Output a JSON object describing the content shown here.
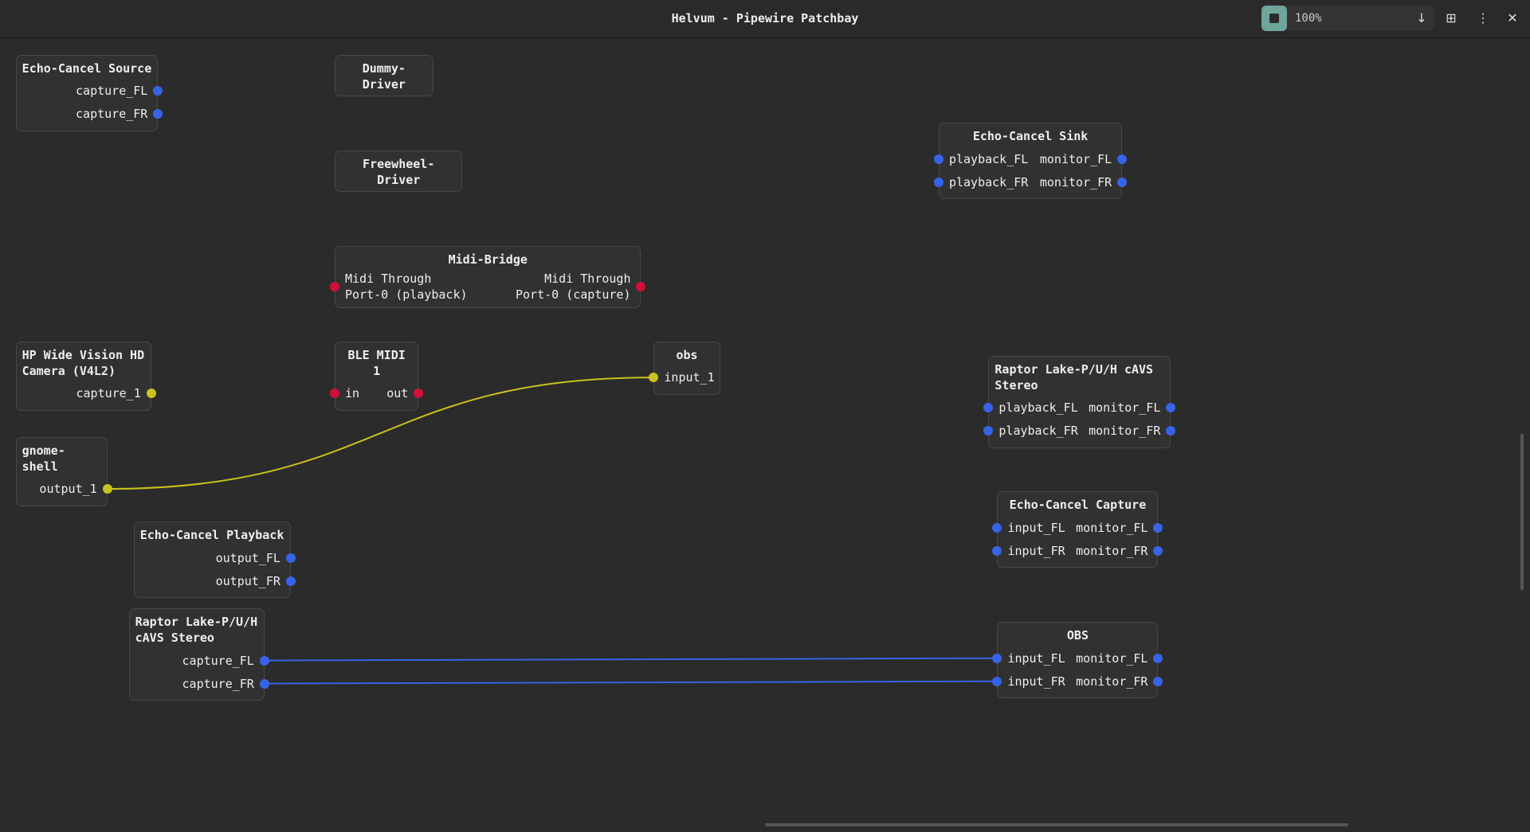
{
  "header": {
    "title": "Helvum - Pipewire Patchbay",
    "zoom": "100%"
  },
  "nodes": [
    {
      "title": "Echo-Cancel Source",
      "inputs": [],
      "outputs": [
        "capture_FL",
        "capture_FR"
      ]
    },
    {
      "title": "Dummy-Driver",
      "inputs": [],
      "outputs": []
    },
    {
      "title": "Freewheel-Driver",
      "inputs": [],
      "outputs": []
    },
    {
      "title": "Echo-Cancel Sink",
      "inputs": [
        "playback_FL",
        "playback_FR"
      ],
      "outputs": [
        "monitor_FL",
        "monitor_FR"
      ]
    },
    {
      "title": "Midi-Bridge",
      "inputs": [
        "Midi Through\nPort-0 (playback)"
      ],
      "outputs": [
        "Midi Through\nPort-0 (capture)"
      ]
    },
    {
      "title": "HP Wide Vision HD Camera (V4L2)",
      "inputs": [],
      "outputs": [
        "capture_1"
      ]
    },
    {
      "title": "BLE MIDI 1",
      "inputs": [
        "in"
      ],
      "outputs": [
        "out"
      ]
    },
    {
      "title": "obs",
      "inputs": [
        "input_1"
      ],
      "outputs": []
    },
    {
      "title": "Raptor Lake-P/U/H cAVS Stereo",
      "inputs": [
        "playback_FL",
        "playback_FR"
      ],
      "outputs": [
        "monitor_FL",
        "monitor_FR"
      ]
    },
    {
      "title": "gnome-shell",
      "inputs": [],
      "outputs": [
        "output_1"
      ]
    },
    {
      "title": "Echo-Cancel Capture",
      "inputs": [
        "input_FL",
        "input_FR"
      ],
      "outputs": [
        "monitor_FL",
        "monitor_FR"
      ]
    },
    {
      "title": "Echo-Cancel Playback",
      "inputs": [],
      "outputs": [
        "output_FL",
        "output_FR"
      ]
    },
    {
      "title": "Raptor Lake-P/U/H cAVS Stereo",
      "inputs": [],
      "outputs": [
        "capture_FL",
        "capture_FR"
      ]
    },
    {
      "title": "OBS",
      "inputs": [
        "input_FL",
        "input_FR"
      ],
      "outputs": [
        "monitor_FL",
        "monitor_FR"
      ]
    }
  ]
}
